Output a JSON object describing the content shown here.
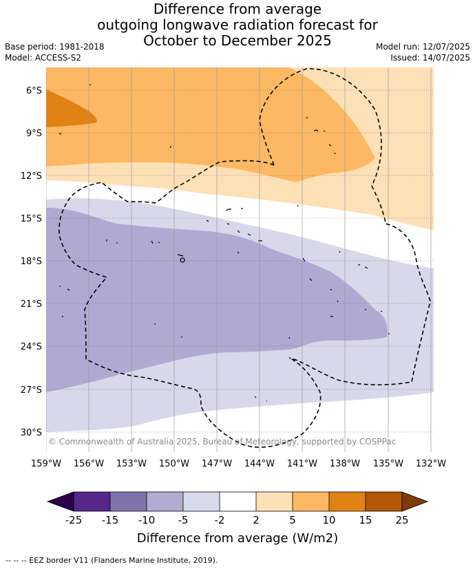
{
  "title": {
    "line1": "Difference from average",
    "line2": "outgoing longwave radiation forecast for",
    "line3": "October to December 2025"
  },
  "meta_left": {
    "base_period": "Base period: 1981-2018",
    "model": "Model: ACCESS-S2"
  },
  "meta_right": {
    "model_run": "Model run: 12/07/2025",
    "issued": "Issued: 14/07/2025"
  },
  "map": {
    "lat_labels": [
      "6°S",
      "9°S",
      "12°S",
      "15°S",
      "18°S",
      "21°S",
      "24°S",
      "27°S",
      "30°S"
    ],
    "lon_labels": [
      "159°W",
      "156°W",
      "153°W",
      "150°W",
      "147°W",
      "144°W",
      "141°W",
      "138°W",
      "135°W",
      "132°W"
    ],
    "copyright": "© Commonwealth of Australia 2025, Bureau of Meteorology, supported by COSPPac",
    "colors": {
      "neg_5_to_2": "#d8d8ea",
      "neg_10_to_5": "#b0a9d1",
      "pos_2_to_5": "#fee0b6",
      "pos_5_to_10": "#fdb863",
      "pos_10_to_15": "#e08214"
    }
  },
  "colorbar": {
    "title": "Difference from average (W/m2)",
    "ticks": [
      "-25",
      "-15",
      "-10",
      "-5",
      "-2",
      "2",
      "5",
      "10",
      "15",
      "25"
    ],
    "colors": [
      "#2d004b",
      "#542788",
      "#8073ac",
      "#b2abd2",
      "#d8daeb",
      "#ffffff",
      "#fee0b6",
      "#fdb863",
      "#e08214",
      "#b35806",
      "#7f3b08"
    ]
  },
  "footnote": "-- -- -- EEZ border V11 (Flanders Marine Institute, 2019)."
}
